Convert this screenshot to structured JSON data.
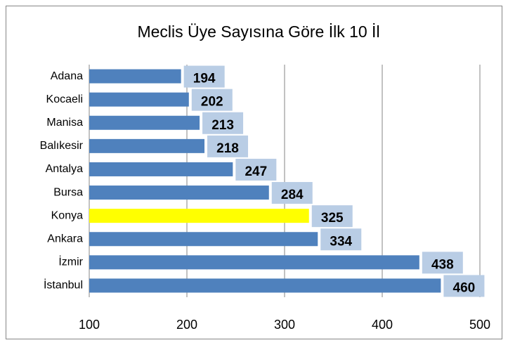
{
  "chart_data": {
    "type": "bar",
    "orientation": "horizontal",
    "title": "Meclis Üye Sayısına Göre İlk 10 İl",
    "categories": [
      "Adana",
      "Kocaeli",
      "Manisa",
      "Balıkesir",
      "Antalya",
      "Bursa",
      "Konya",
      "Ankara",
      "İzmir",
      "İstanbul"
    ],
    "values": [
      194,
      202,
      213,
      218,
      247,
      284,
      325,
      334,
      438,
      460
    ],
    "colors": [
      "#4f81bd",
      "#4f81bd",
      "#4f81bd",
      "#4f81bd",
      "#4f81bd",
      "#4f81bd",
      "#ffff00",
      "#4f81bd",
      "#4f81bd",
      "#4f81bd"
    ],
    "label_box_color": "#b9cde5",
    "xlim": [
      100,
      500
    ],
    "xticks": [
      100,
      200,
      300,
      400,
      500
    ],
    "grid": true
  }
}
